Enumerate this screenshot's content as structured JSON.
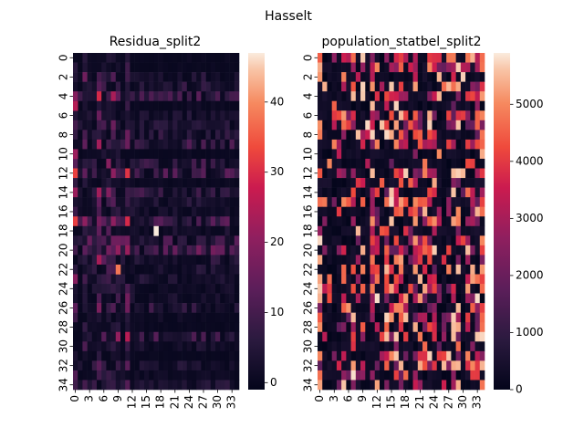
{
  "figure": {
    "title": "Hasselt"
  },
  "chart_data": [
    {
      "type": "heatmap",
      "title": "Residua_split2",
      "rows": 35,
      "cols": 35,
      "xticks": [
        "0",
        "3",
        "6",
        "9",
        "12",
        "15",
        "18",
        "21",
        "24",
        "27",
        "30",
        "33"
      ],
      "yticks": [
        "0",
        "2",
        "4",
        "6",
        "8",
        "10",
        "12",
        "14",
        "16",
        "18",
        "20",
        "22",
        "24",
        "26",
        "28",
        "30",
        "32",
        "34"
      ],
      "colorbar": {
        "range": [
          -1,
          47
        ],
        "ticks": [
          "0",
          "10",
          "20",
          "30",
          "40"
        ],
        "colormap": "rocket"
      },
      "value_estimates": {
        "typical_min": 0,
        "typical_max": 15,
        "hotspots": [
          [
            18,
            17,
            47
          ],
          [
            22,
            9,
            38
          ],
          [
            5,
            0,
            25
          ],
          [
            10,
            0,
            22
          ]
        ]
      }
    },
    {
      "type": "heatmap",
      "title": "population_statbel_split2",
      "rows": 35,
      "cols": 35,
      "xticks": [
        "0",
        "3",
        "6",
        "9",
        "12",
        "15",
        "18",
        "21",
        "24",
        "27",
        "30",
        "33"
      ],
      "yticks": [
        "0",
        "2",
        "4",
        "6",
        "8",
        "10",
        "12",
        "14",
        "16",
        "18",
        "20",
        "22",
        "24",
        "26",
        "28",
        "30",
        "32",
        "34"
      ],
      "colorbar": {
        "range": [
          0,
          5900
        ],
        "ticks": [
          "0",
          "1000",
          "2000",
          "3000",
          "4000",
          "5000"
        ],
        "colormap": "rocket"
      },
      "value_estimates": {
        "typical_min": 0,
        "typical_max": 5900
      }
    }
  ]
}
